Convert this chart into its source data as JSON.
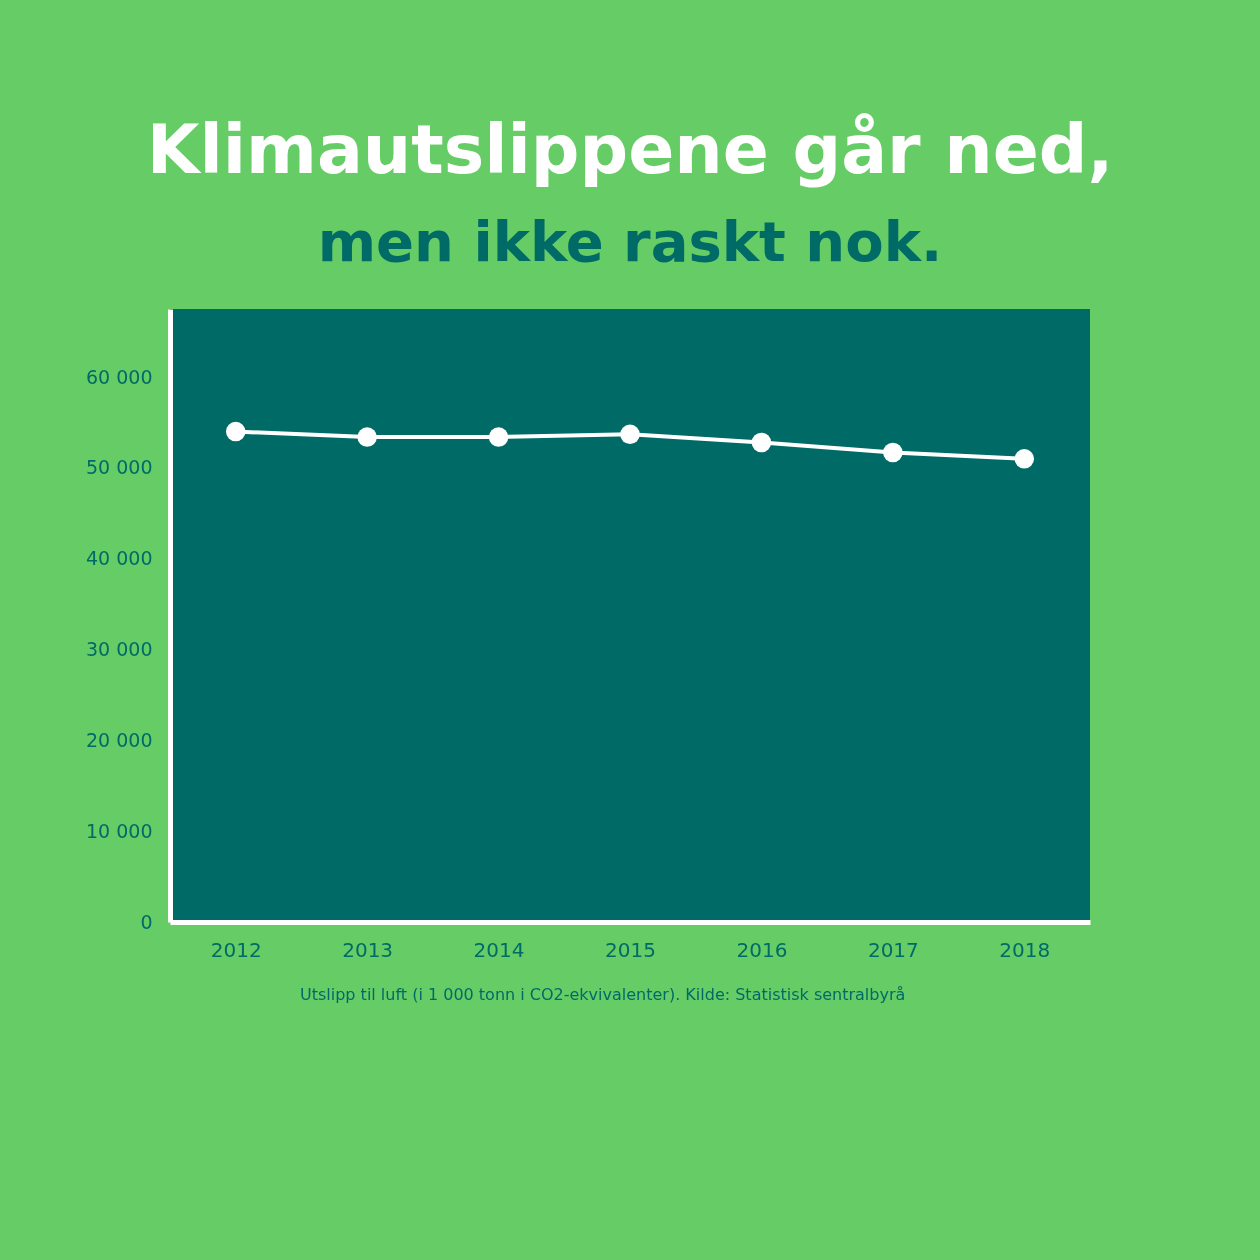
{
  "chart_data": {
    "type": "line",
    "title": "Klimautslippene går ned,",
    "subtitle": "men ikke raskt nok.",
    "categories": [
      "2012",
      "2013",
      "2014",
      "2015",
      "2016",
      "2017",
      "2018"
    ],
    "series": [
      {
        "color": "#ffffff",
        "values": [
          54000,
          53400,
          53400,
          53700,
          52800,
          51700,
          51000
        ]
      }
    ],
    "ylim": [
      0,
      67500
    ],
    "yticks": [
      0,
      {
        "value": 10000,
        "label": "10 000"
      },
      {
        "value": 20000,
        "label": "20 000"
      },
      {
        "value": 30000,
        "label": "30 000"
      },
      {
        "value": 40000,
        "label": "40 000"
      },
      {
        "value": 50000,
        "label": "50 000"
      },
      {
        "value": 60000,
        "label": "60 000"
      }
    ],
    "grid": false,
    "marker": "circle",
    "line_style": "solid",
    "annotations": [
      "Utslipp til luft (i 1 000 tonn i CO2-ekvivalenter). Kilde: Statistisk sentralbyrå"
    ]
  }
}
